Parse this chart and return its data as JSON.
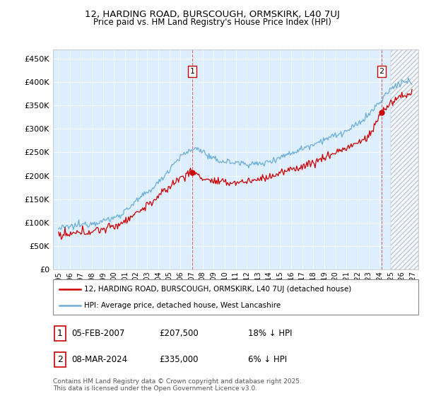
{
  "title1": "12, HARDING ROAD, BURSCOUGH, ORMSKIRK, L40 7UJ",
  "title2": "Price paid vs. HM Land Registry's House Price Index (HPI)",
  "legend1": "12, HARDING ROAD, BURSCOUGH, ORMSKIRK, L40 7UJ (detached house)",
  "legend2": "HPI: Average price, detached house, West Lancashire",
  "annotation1_label": "1",
  "annotation1_date": "05-FEB-2007",
  "annotation1_price": "£207,500",
  "annotation1_hpi": "18% ↓ HPI",
  "annotation2_label": "2",
  "annotation2_date": "08-MAR-2024",
  "annotation2_price": "£335,000",
  "annotation2_hpi": "6% ↓ HPI",
  "footer": "Contains HM Land Registry data © Crown copyright and database right 2025.\nThis data is licensed under the Open Government Licence v3.0.",
  "vline1_x": 2007.083,
  "vline2_x": 2024.167,
  "red_color": "#cc0000",
  "blue_color": "#6baed6",
  "plot_bg": "#ddeeff",
  "grid_color": "#ffffff",
  "ylim_min": 0,
  "ylim_max": 470000,
  "xlim_min": 1994.5,
  "xlim_max": 2027.5,
  "sale1_year": 2007.083,
  "sale1_price": 207500,
  "sale2_year": 2024.167,
  "sale2_price": 335000
}
